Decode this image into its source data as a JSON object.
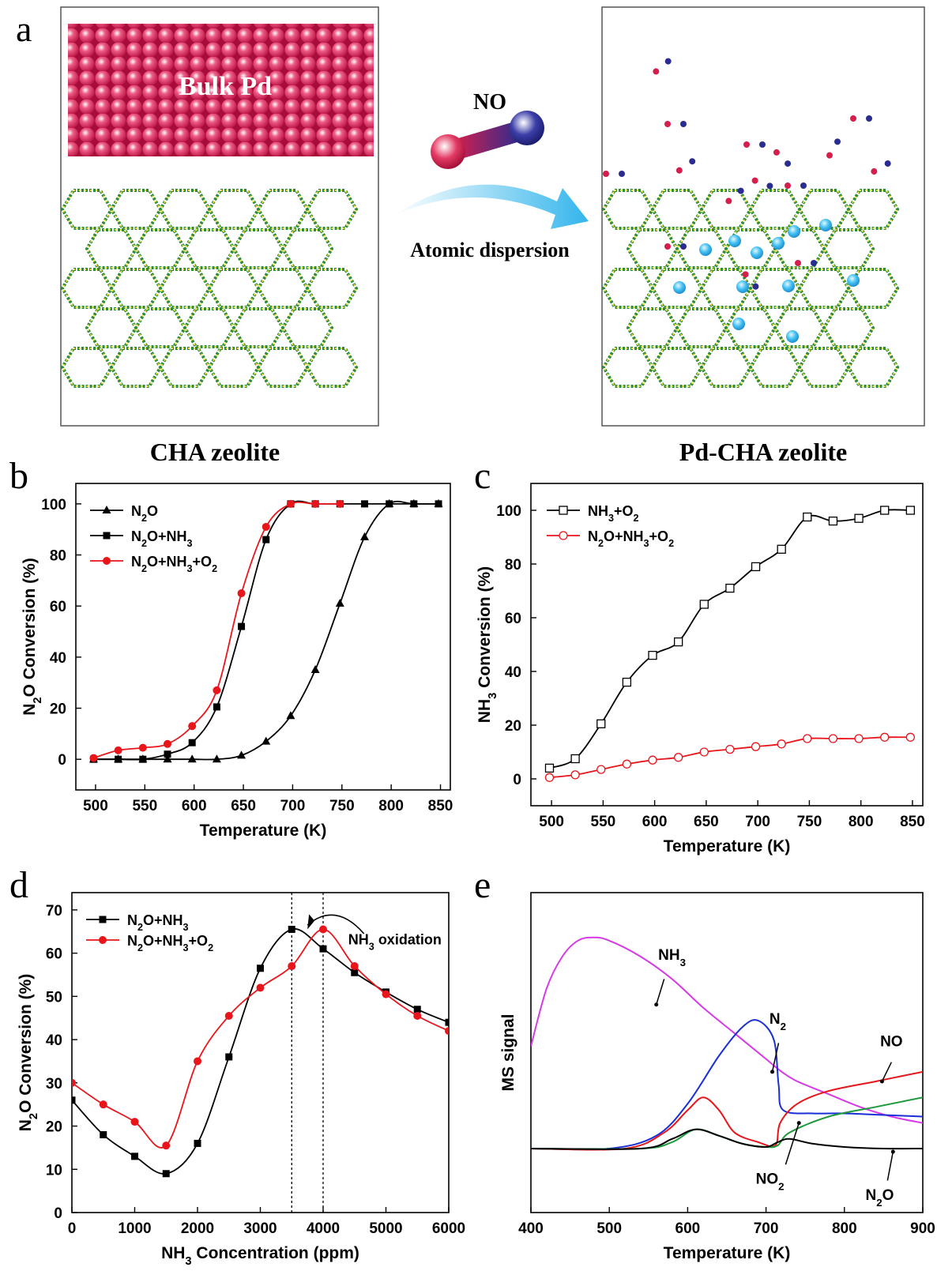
{
  "panel_a": {
    "letter": "a",
    "bulk_label": "Bulk Pd",
    "molecule_label": "NO",
    "arrow_label": "Atomic dispersion",
    "left_caption": "CHA zeolite",
    "right_caption": "Pd-CHA zeolite",
    "colors": {
      "bulk_pd": "#c8134a",
      "zeolite_green": "#2e8b3a",
      "zeolite_yellow": "#f0e12a",
      "pd_atom": "#3ab8ee",
      "arrow": "#33b5ec"
    },
    "icons": {
      "no_molecule": "no-molecule-icon",
      "pd_atom": "pd-atom-icon",
      "zeolite": "zeolite-framework-icon"
    }
  },
  "chart_data": [
    {
      "panel": "b",
      "type": "line",
      "xlabel": "Temperature (K)",
      "ylabel": "N₂O Conversion (%)",
      "xlim": [
        480,
        860
      ],
      "ylim": [
        -12,
        108
      ],
      "xticks": [
        500,
        550,
        600,
        650,
        700,
        750,
        800,
        850
      ],
      "yticks": [
        0,
        20,
        40,
        60,
        80,
        100
      ],
      "legend": "top-left",
      "series": [
        {
          "name": "N₂O",
          "marker": "triangle",
          "color": "#000000",
          "x": [
            498,
            523,
            548,
            573,
            598,
            623,
            648,
            673,
            698,
            723,
            748,
            773,
            798,
            823,
            848
          ],
          "y": [
            0,
            0,
            0,
            0,
            0,
            0,
            1.5,
            7,
            17,
            35,
            61,
            87,
            100,
            100,
            100
          ]
        },
        {
          "name": "N₂O+NH₃",
          "marker": "square",
          "color": "#000000",
          "x": [
            498,
            523,
            548,
            573,
            598,
            623,
            648,
            673,
            698,
            723,
            748,
            773,
            798,
            823,
            848
          ],
          "y": [
            0,
            0,
            0,
            2,
            6.5,
            20.5,
            52,
            86,
            100,
            100,
            100,
            100,
            100,
            100,
            100
          ]
        },
        {
          "name": "N₂O+NH₃+O₂",
          "marker": "circle",
          "color": "#e8151b",
          "x": [
            498,
            523,
            548,
            573,
            598,
            623,
            648,
            673,
            698,
            723,
            748
          ],
          "y": [
            0.5,
            3.5,
            4.5,
            6,
            13,
            27,
            65,
            91,
            100,
            100,
            100
          ]
        }
      ]
    },
    {
      "panel": "c",
      "type": "line",
      "xlabel": "Temperature (K)",
      "ylabel": "NH₃ Conversion (%)",
      "xlim": [
        480,
        860
      ],
      "ylim": [
        -10,
        110
      ],
      "xticks": [
        500,
        550,
        600,
        650,
        700,
        750,
        800,
        850
      ],
      "yticks": [
        0,
        20,
        40,
        60,
        80,
        100
      ],
      "legend": "top-left",
      "series": [
        {
          "name": "NH₃+O₂",
          "marker": "open-square",
          "color": "#000000",
          "x": [
            498,
            523,
            548,
            573,
            598,
            623,
            648,
            673,
            698,
            723,
            748,
            773,
            798,
            823,
            848
          ],
          "y": [
            4,
            7.5,
            20.5,
            36,
            46,
            51,
            65,
            71,
            79,
            85.5,
            97.5,
            96,
            97,
            100,
            100
          ]
        },
        {
          "name": "N₂O+NH₃+O₂",
          "marker": "open-circle",
          "color": "#e8151b",
          "x": [
            498,
            523,
            548,
            573,
            598,
            623,
            648,
            673,
            698,
            723,
            748,
            773,
            798,
            823,
            848
          ],
          "y": [
            0.5,
            1.5,
            3.5,
            5.5,
            7,
            8,
            10,
            11,
            12,
            13,
            15,
            15,
            15,
            15.5,
            15.5
          ]
        }
      ]
    },
    {
      "panel": "d",
      "type": "line",
      "xlabel": "NH₃ Concentration (ppm)",
      "ylabel": "N₂O Conversion (%)",
      "xlim": [
        0,
        6000
      ],
      "ylim": [
        0,
        74
      ],
      "xticks": [
        0,
        1000,
        2000,
        3000,
        4000,
        5000,
        6000
      ],
      "yticks": [
        0,
        10,
        20,
        30,
        40,
        50,
        60,
        70
      ],
      "vlines": [
        3500,
        4000
      ],
      "annotation": "NH₃ oxidation",
      "legend": "top-left",
      "series": [
        {
          "name": "N₂O+NH₃",
          "marker": "square",
          "color": "#000000",
          "x": [
            0,
            500,
            1000,
            1500,
            2000,
            2500,
            3000,
            3500,
            4000,
            4500,
            5000,
            5500,
            6000
          ],
          "y": [
            26,
            18,
            13,
            9,
            16,
            36,
            56.5,
            65.5,
            61,
            55.5,
            51,
            47,
            44
          ]
        },
        {
          "name": "N₂O+NH₃+O₂",
          "marker": "circle",
          "color": "#e8151b",
          "x": [
            0,
            500,
            1000,
            1500,
            2000,
            2500,
            3000,
            3500,
            4000,
            4500,
            5000,
            5500,
            6000
          ],
          "y": [
            30,
            25,
            21,
            15.5,
            35,
            45.5,
            52,
            57,
            65.5,
            57,
            50.5,
            45.5,
            42
          ]
        }
      ]
    },
    {
      "panel": "e",
      "type": "line",
      "xlabel": "Temperature (K)",
      "ylabel": "MS signal",
      "xlim": [
        400,
        900
      ],
      "ylim": [
        0,
        100
      ],
      "xticks": [
        400,
        500,
        600,
        700,
        800,
        900
      ],
      "series": [
        {
          "name": "NH₃",
          "color": "#d63ae6",
          "x": [
            400,
            420,
            440,
            460,
            480,
            500,
            540,
            580,
            620,
            660,
            700,
            720,
            740,
            780,
            820,
            860,
            900
          ],
          "y": [
            52,
            70,
            80,
            85,
            86,
            85,
            80,
            73,
            64,
            56,
            48,
            44,
            41,
            37,
            33,
            30,
            28
          ]
        },
        {
          "name": "N₂",
          "color": "#1a2fd6",
          "x": [
            400,
            500,
            560,
            600,
            640,
            670,
            690,
            710,
            716,
            722,
            760,
            800,
            850,
            900
          ],
          "y": [
            20,
            20,
            24,
            34,
            49,
            58,
            60,
            54,
            40,
            32,
            31,
            31,
            30.5,
            30
          ]
        },
        {
          "name": "NO",
          "color": "#e8151b",
          "x": [
            400,
            520,
            570,
            600,
            620,
            640,
            660,
            690,
            712,
            718,
            740,
            780,
            840,
            900
          ],
          "y": [
            20,
            20,
            25,
            32,
            36,
            32,
            25,
            22,
            21,
            28,
            34,
            38,
            41,
            44
          ]
        },
        {
          "name": "NO₂",
          "color": "#1e9a3c",
          "x": [
            400,
            540,
            580,
            610,
            640,
            670,
            700,
            715,
            730,
            780,
            840,
            900
          ],
          "y": [
            20,
            20,
            22,
            26,
            24,
            21.5,
            20.5,
            21,
            25,
            30,
            33,
            36
          ]
        },
        {
          "name": "N₂O",
          "color": "#000000",
          "x": [
            400,
            540,
            580,
            610,
            640,
            670,
            700,
            715,
            730,
            760,
            800,
            850,
            900
          ],
          "y": [
            20,
            20,
            23,
            26,
            24,
            21.5,
            20.5,
            22,
            23,
            21.5,
            20.5,
            20,
            20
          ]
        }
      ]
    }
  ]
}
